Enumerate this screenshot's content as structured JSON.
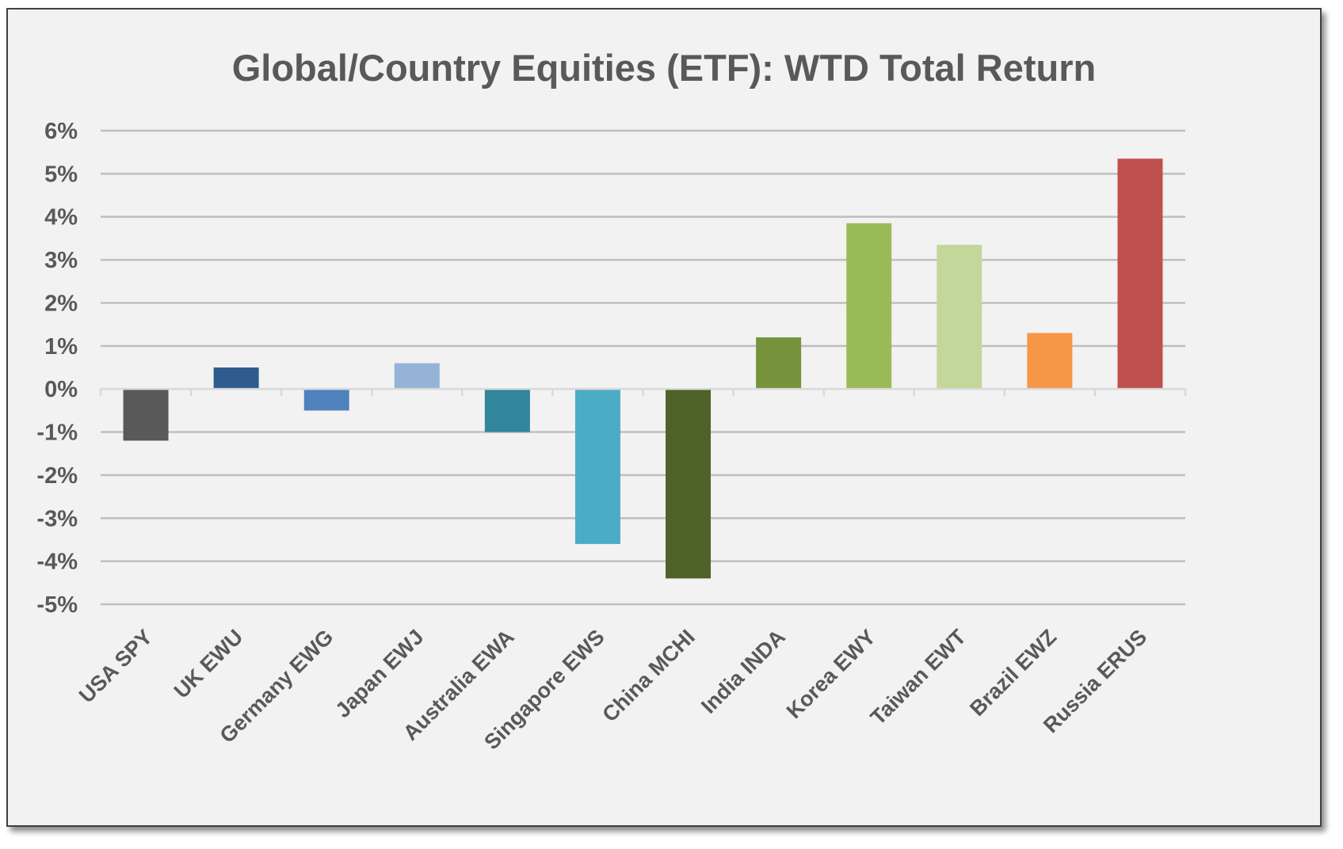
{
  "chart_data": {
    "type": "bar",
    "title": "Global/Country Equities (ETF): WTD Total Return",
    "xlabel": "",
    "ylabel": "",
    "ylim": [
      -5,
      6
    ],
    "yticks": [
      6,
      5,
      4,
      3,
      2,
      1,
      0,
      -1,
      -2,
      -3,
      -4,
      -5
    ],
    "ytick_labels": [
      "6%",
      "5%",
      "4%",
      "3%",
      "2%",
      "1%",
      "0%",
      "-1%",
      "-2%",
      "-3%",
      "-4%",
      "-5%"
    ],
    "grid": true,
    "legend": "none",
    "categories": [
      "USA SPY",
      "UK EWU",
      "Germany EWG",
      "Japan EWJ",
      "Australia EWA",
      "Singapore EWS",
      "China MCHI",
      "India INDA",
      "Korea EWY",
      "Taiwan EWT",
      "Brazil EWZ",
      "Russia ERUS"
    ],
    "values": [
      -1.2,
      0.5,
      -0.5,
      0.6,
      -1.0,
      -3.6,
      -4.4,
      1.2,
      3.85,
      3.35,
      1.3,
      5.35
    ],
    "colors": [
      "#595959",
      "#2f5b8f",
      "#4f81bd",
      "#95b3d7",
      "#31859c",
      "#4bacc6",
      "#4f6228",
      "#76933c",
      "#9bbb59",
      "#c4d79b",
      "#f79646",
      "#c0504d"
    ]
  }
}
